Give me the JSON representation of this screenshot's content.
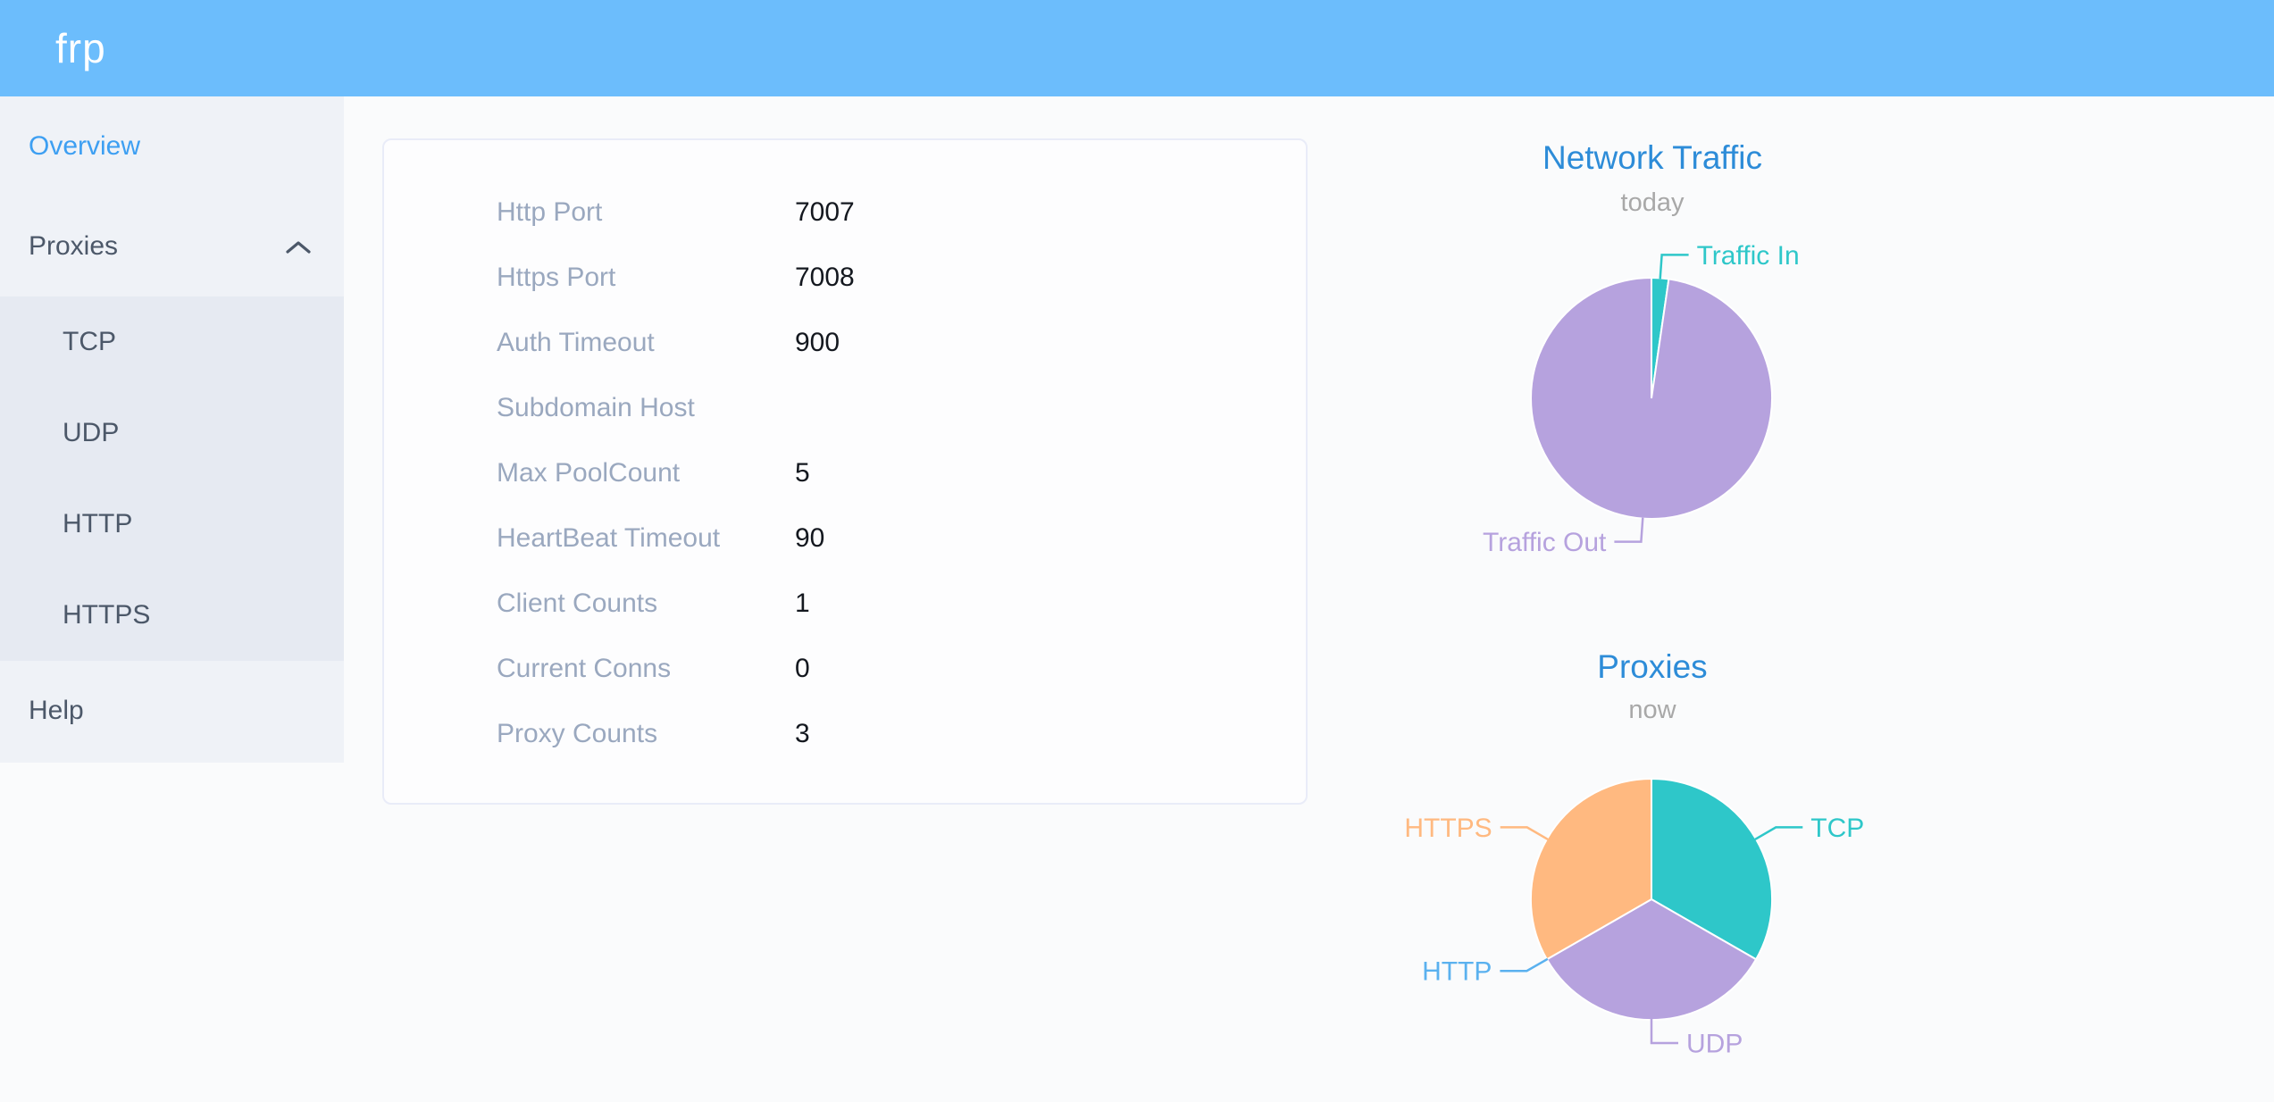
{
  "theme": {
    "header_bg": "#6cbdfc",
    "header_text": "#ffffff",
    "sidebar_bg": "#eff2f7",
    "submenu_bg": "#e6eaf2",
    "menu_text": "#4c5869",
    "menu_active": "#3d9ff2",
    "page_bg": "#fafbfc",
    "card_bg": "#fdfdfe",
    "card_border": "#e9ecf8",
    "label_color": "#9aa8bf",
    "value_color": "#14181f",
    "chart_title": "#2d8cd8",
    "chart_subtitle": "#a8a8a8"
  },
  "header": {
    "logo": "frp"
  },
  "sidebar": {
    "items": {
      "overview": {
        "label": "Overview",
        "active": true
      },
      "proxies": {
        "label": "Proxies",
        "expanded": true
      },
      "help": {
        "label": "Help"
      }
    },
    "proxies_submenu": [
      {
        "label": "TCP"
      },
      {
        "label": "UDP"
      },
      {
        "label": "HTTP"
      },
      {
        "label": "HTTPS"
      }
    ]
  },
  "overview_card": {
    "rows": [
      {
        "label": "Http Port",
        "value": "7007"
      },
      {
        "label": "Https Port",
        "value": "7008"
      },
      {
        "label": "Auth Timeout",
        "value": "900"
      },
      {
        "label": "Subdomain Host",
        "value": ""
      },
      {
        "label": "Max PoolCount",
        "value": "5"
      },
      {
        "label": "HeartBeat Timeout",
        "value": "90"
      },
      {
        "label": "Client Counts",
        "value": "1"
      },
      {
        "label": "Current Conns",
        "value": "0"
      },
      {
        "label": "Proxy Counts",
        "value": "3"
      }
    ]
  },
  "chart_data": [
    {
      "type": "pie",
      "title": "Network Traffic",
      "subtitle": "today",
      "legend": "none",
      "label_style": "leader-line",
      "start_angle_deg": 0,
      "series": [
        {
          "name": "Traffic In",
          "pct": 2.3,
          "color": "#2ec7c9"
        },
        {
          "name": "Traffic Out",
          "pct": 97.7,
          "color": "#b6a2de"
        }
      ]
    },
    {
      "type": "pie",
      "title": "Proxies",
      "subtitle": "now",
      "legend": "none",
      "label_style": "leader-line",
      "start_angle_deg": 0,
      "series": [
        {
          "name": "TCP",
          "pct": 33.3,
          "color": "#2ec7c9"
        },
        {
          "name": "UDP",
          "pct": 33.4,
          "color": "#b6a2de"
        },
        {
          "name": "HTTP",
          "pct": 0,
          "color": "#5ab1ef"
        },
        {
          "name": "HTTPS",
          "pct": 33.3,
          "color": "#ffb980"
        }
      ]
    }
  ]
}
